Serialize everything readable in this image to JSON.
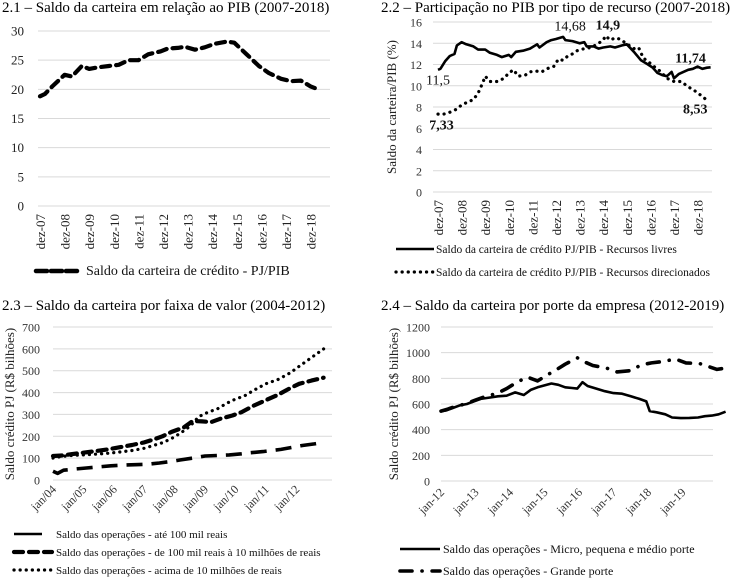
{
  "chart_data": [
    {
      "id": "c21",
      "type": "line",
      "title": "2.1 – Saldo da carteira em relação ao PIB (2007-2018)",
      "xlabel": "",
      "ylabel": "",
      "ylim": [
        0,
        30
      ],
      "yticks": [
        0,
        5,
        10,
        15,
        20,
        25,
        30
      ],
      "grid": true,
      "legend": "bottom",
      "categories": [
        "dez-07",
        "dez-08",
        "dez-09",
        "dez-10",
        "dez-11",
        "dez-12",
        "dez-13",
        "dez-14",
        "dez-15",
        "dez-16",
        "dez-17",
        "dez-18"
      ],
      "series": [
        {
          "name": "Saldo da carteira de crédito - PJ/PIB",
          "style": "dashed",
          "values": [
            18.8,
            19.2,
            20.5,
            22.5,
            22.2,
            24.0,
            23.5,
            23.8,
            24.0,
            24.2,
            25.0,
            25.0,
            26.0,
            26.5,
            27.0,
            27.1,
            27.3,
            26.8,
            27.2,
            27.8,
            28.2,
            28.0,
            26.0,
            24.0,
            22.8,
            21.8,
            21.4,
            21.5,
            20.5,
            20.0
          ],
          "x_positions": [
            0,
            0.2,
            0.5,
            1.0,
            1.3,
            1.7,
            2.0,
            2.4,
            2.8,
            3.2,
            3.6,
            4.0,
            4.4,
            4.9,
            5.2,
            5.6,
            5.9,
            6.3,
            6.7,
            7.1,
            7.6,
            7.9,
            8.4,
            8.9,
            9.3,
            9.8,
            10.2,
            10.6,
            11.0,
            11.3
          ]
        }
      ]
    },
    {
      "id": "c22",
      "type": "line",
      "title": "2.2 – Participação no PIB por tipo de recurso (2007-2018)",
      "xlabel": "",
      "ylabel": "Saldo da carteira/PIB (%)",
      "ylim": [
        0,
        16
      ],
      "yticks": [
        0,
        2,
        4,
        6,
        8,
        10,
        12,
        14,
        16
      ],
      "grid": true,
      "legend": "bottom",
      "categories": [
        "dez-07",
        "dez-08",
        "dez-09",
        "dez-10",
        "dez-11",
        "dez-12",
        "dez-13",
        "dez-14",
        "dez-15",
        "dez-16",
        "dez-17",
        "dez-18"
      ],
      "annotations": [
        {
          "text": "11,5",
          "bold": false,
          "x": 0.0,
          "y": 10.1
        },
        {
          "text": "7,33",
          "bold": true,
          "x": 0.15,
          "y": 5.9
        },
        {
          "text": "14,68",
          "bold": false,
          "x": 5.6,
          "y": 15.2
        },
        {
          "text": "14,9",
          "bold": true,
          "x": 7.2,
          "y": 15.3
        },
        {
          "text": "11,74",
          "bold": true,
          "x": 10.7,
          "y": 12.2
        },
        {
          "text": "8,53",
          "bold": true,
          "x": 10.9,
          "y": 7.4
        }
      ],
      "series": [
        {
          "name": "Saldo da carteira de crédito PJ/PIB - Recursos livres",
          "style": "solid",
          "values": [
            11.5,
            11.6,
            12.3,
            12.8,
            13.0,
            13.8,
            14.1,
            13.9,
            13.7,
            13.4,
            13.4,
            13.1,
            12.9,
            12.7,
            12.9,
            12.7,
            13.2,
            13.3,
            13.5,
            13.9,
            13.6,
            14.1,
            14.3,
            14.4,
            14.6,
            14.3,
            14.2,
            14.0,
            14.1,
            13.7,
            13.7,
            13.5,
            13.6,
            13.7,
            13.6,
            13.8,
            13.9,
            13.2,
            12.4,
            12.0,
            11.7,
            11.2,
            11.0,
            10.9,
            11.3,
            10.7,
            11.1,
            11.3,
            11.5,
            11.6,
            11.8,
            11.6,
            11.7,
            11.74
          ],
          "x_positions": [
            0,
            0.1,
            0.3,
            0.5,
            0.7,
            0.8,
            1.0,
            1.2,
            1.5,
            1.7,
            2.0,
            2.2,
            2.5,
            2.7,
            3.0,
            3.1,
            3.3,
            3.6,
            3.9,
            4.2,
            4.3,
            4.6,
            4.8,
            5.0,
            5.3,
            5.4,
            5.7,
            6.0,
            6.2,
            6.3,
            6.6,
            6.8,
            7.0,
            7.3,
            7.5,
            7.8,
            8.0,
            8.3,
            8.6,
            8.9,
            9.1,
            9.3,
            9.5,
            9.7,
            9.9,
            10.0,
            10.2,
            10.4,
            10.6,
            10.8,
            11.0,
            11.2,
            11.4,
            11.55
          ]
        },
        {
          "name": "Saldo da carteira de crédito PJ/PIB - Recursos direcionados",
          "style": "dotted",
          "values": [
            7.33,
            7.3,
            7.5,
            7.8,
            8.2,
            8.5,
            8.7,
            9.3,
            10.3,
            10.9,
            10.4,
            10.4,
            10.7,
            11.2,
            11.5,
            10.9,
            11.0,
            11.3,
            11.4,
            11.3,
            11.6,
            11.8,
            12.5,
            12.4,
            12.8,
            13.0,
            13.3,
            13.5,
            13.6,
            14.0,
            14.3,
            14.7,
            14.3,
            14.5,
            14.4,
            14.1,
            13.8,
            13.5,
            13.6,
            12.6,
            12.3,
            11.9,
            11.4,
            10.7,
            10.4,
            10.4,
            9.9,
            9.5,
            9.0,
            8.53
          ],
          "x_positions": [
            0,
            0.2,
            0.5,
            0.8,
            1.0,
            1.3,
            1.5,
            1.7,
            1.9,
            2.0,
            2.2,
            2.5,
            2.8,
            3.0,
            3.2,
            3.4,
            3.7,
            3.9,
            4.1,
            4.4,
            4.6,
            4.9,
            5.1,
            5.3,
            5.5,
            5.7,
            5.9,
            6.2,
            6.5,
            6.8,
            7.0,
            7.1,
            7.3,
            7.5,
            7.7,
            7.9,
            8.1,
            8.3,
            8.5,
            8.7,
            8.9,
            9.1,
            9.4,
            9.7,
            10.0,
            10.3,
            10.6,
            10.9,
            11.2,
            11.45
          ]
        }
      ]
    },
    {
      "id": "c23",
      "type": "line",
      "title": "2.3 – Saldo da carteira por faixa de valor (2004-2012)",
      "xlabel": "",
      "ylabel": "Saldo crédito PJ (R$ bilhões)",
      "ylim": [
        0,
        700
      ],
      "yticks": [
        0,
        100,
        200,
        300,
        400,
        500,
        600,
        700
      ],
      "grid": true,
      "legend": "bottom",
      "categories": [
        "jan/04",
        "jan/05",
        "jan/06",
        "jan/07",
        "jan/08",
        "jan/09",
        "jan/10",
        "jan/11",
        "jan/12"
      ],
      "series": [
        {
          "name": "Saldo das operações - até 100 mil reais",
          "style": "solid",
          "values": [],
          "x_positions": []
        },
        {
          "name": "Saldo das operações - de 100 mil reais à 10 milhões de reais",
          "style": "dashed",
          "values": [
            110,
            112,
            118,
            125,
            132,
            140,
            150,
            160,
            172,
            185,
            200,
            220,
            240,
            270,
            268,
            265,
            280,
            295,
            310,
            340,
            365,
            390,
            420,
            440,
            455,
            468
          ],
          "x_positions": [
            0,
            0.3,
            0.6,
            1.0,
            1.4,
            1.8,
            2.2,
            2.6,
            3.0,
            3.3,
            3.6,
            3.9,
            4.3,
            4.6,
            4.9,
            5.2,
            5.5,
            5.9,
            6.2,
            6.6,
            7.0,
            7.4,
            7.8,
            8.1,
            8.5,
            8.9
          ]
        },
        {
          "name": "Saldo das operações - acima de 10 milhões de reais",
          "style": "dotted",
          "values": [
            100,
            108,
            112,
            115,
            118,
            122,
            128,
            135,
            145,
            158,
            170,
            190,
            215,
            245,
            290,
            310,
            325,
            350,
            370,
            385,
            410,
            440,
            460,
            490,
            520,
            560,
            600
          ],
          "x_positions": [
            0,
            0.3,
            0.6,
            1.0,
            1.4,
            1.8,
            2.2,
            2.6,
            3.0,
            3.3,
            3.6,
            3.9,
            4.2,
            4.5,
            4.8,
            5.1,
            5.4,
            5.7,
            6.0,
            6.3,
            6.6,
            7.0,
            7.4,
            7.8,
            8.1,
            8.5,
            8.9
          ]
        },
        {
          "name": "Saldo das operações - até 100 mil reais (series line)",
          "style": "longdash",
          "values": [
            40,
            30,
            45,
            50,
            55,
            60,
            65,
            68,
            70,
            72,
            78,
            85,
            92,
            100,
            110,
            112,
            115,
            120,
            125,
            130,
            135,
            140,
            150,
            158,
            165,
            172
          ],
          "x_positions": [
            0,
            0.15,
            0.35,
            0.7,
            1.1,
            1.5,
            1.9,
            2.3,
            2.7,
            3.1,
            3.5,
            3.9,
            4.2,
            4.6,
            5.0,
            5.4,
            5.8,
            6.2,
            6.5,
            6.9,
            7.2,
            7.5,
            7.9,
            8.2,
            8.6,
            8.9
          ]
        }
      ]
    },
    {
      "id": "c24",
      "type": "line",
      "title": "2.4 – Saldo da carteira por porte da empresa (2012-2019)",
      "xlabel": "",
      "ylabel": "Saldo crédito PJ (R$ bilhões)",
      "ylim": [
        0,
        1200
      ],
      "yticks": [
        0,
        200,
        400,
        600,
        800,
        1000,
        1200
      ],
      "grid": true,
      "legend": "bottom",
      "categories": [
        "jan-12",
        "jan-13",
        "jan-14",
        "jan-15",
        "jan-16",
        "jan-17",
        "jan-18",
        "jan-19"
      ],
      "series": [
        {
          "name": "Saldo das operações  - Micro, pequena e médio porte",
          "style": "solid",
          "values": [
            545,
            550,
            570,
            590,
            600,
            620,
            640,
            650,
            660,
            665,
            690,
            670,
            710,
            730,
            745,
            760,
            750,
            730,
            725,
            720,
            770,
            740,
            720,
            700,
            685,
            680,
            660,
            640,
            620,
            545,
            535,
            520,
            495,
            490,
            492,
            495,
            505,
            510,
            520,
            540
          ],
          "x_positions": [
            0,
            0.15,
            0.35,
            0.55,
            0.75,
            0.95,
            1.15,
            1.4,
            1.65,
            1.9,
            2.15,
            2.4,
            2.6,
            2.8,
            3.0,
            3.2,
            3.4,
            3.6,
            3.8,
            3.95,
            4.1,
            4.25,
            4.5,
            4.75,
            5.0,
            5.25,
            5.5,
            5.75,
            5.95,
            6.05,
            6.25,
            6.5,
            6.7,
            6.95,
            7.2,
            7.45,
            7.65,
            7.85,
            8.05,
            8.25
          ]
        },
        {
          "name": "Saldo das operações  - Grande porte",
          "style": "dashdot",
          "values": [
            545,
            560,
            580,
            600,
            630,
            660,
            680,
            720,
            770,
            810,
            780,
            830,
            860,
            910,
            960,
            935,
            900,
            880,
            850,
            860,
            905,
            920,
            930,
            950,
            920,
            915,
            870,
            880
          ],
          "x_positions": [
            0,
            0.2,
            0.4,
            0.7,
            1.0,
            1.3,
            1.6,
            1.9,
            2.2,
            2.5,
            2.8,
            3.1,
            3.3,
            3.6,
            3.95,
            4.1,
            4.4,
            4.8,
            5.1,
            5.5,
            5.8,
            6.1,
            6.4,
            6.8,
            7.1,
            7.5,
            8.0,
            8.25
          ]
        }
      ]
    }
  ]
}
